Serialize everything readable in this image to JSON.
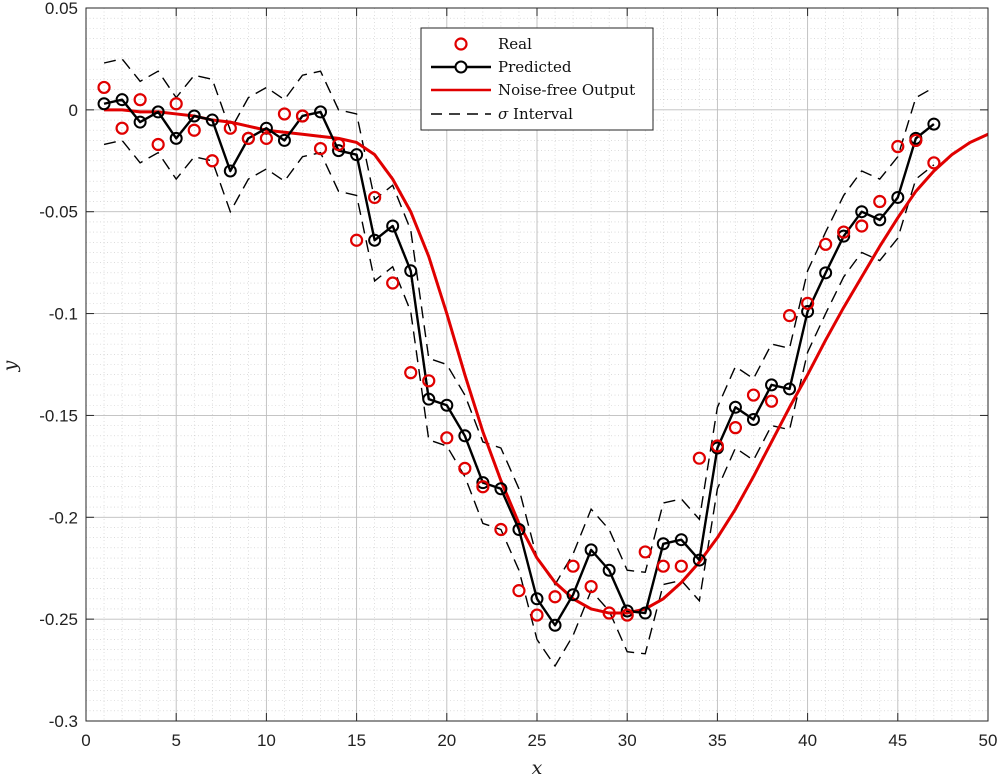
{
  "chart_data": {
    "type": "line",
    "title": "",
    "xlabel": "x",
    "ylabel": "y",
    "xlim": [
      0,
      50
    ],
    "ylim": [
      -0.3,
      0.05
    ],
    "xticks": [
      0,
      5,
      10,
      15,
      20,
      25,
      30,
      35,
      40,
      45,
      50
    ],
    "yticks": [
      0.05,
      0,
      -0.05,
      -0.1,
      -0.15,
      -0.2,
      -0.25,
      -0.3
    ],
    "xtick_labels": [
      "0",
      "5",
      "10",
      "15",
      "20",
      "25",
      "30",
      "35",
      "40",
      "45",
      "50"
    ],
    "ytick_labels": [
      "0.05",
      "0",
      "-0.05",
      "-0.1",
      "-0.15",
      "-0.2",
      "-0.25",
      "-0.3"
    ],
    "grid": true,
    "minor_grid": true,
    "legend_position": "top-center",
    "x": [
      1,
      2,
      3,
      4,
      5,
      6,
      7,
      8,
      9,
      10,
      11,
      12,
      13,
      14,
      15,
      16,
      17,
      18,
      19,
      20,
      21,
      22,
      23,
      24,
      25,
      26,
      27,
      28,
      29,
      30,
      31,
      32,
      33,
      34,
      35,
      36,
      37,
      38,
      39,
      40,
      41,
      42,
      43,
      44,
      45,
      46,
      47
    ],
    "series": [
      {
        "name": "Real",
        "kind": "markers",
        "color": "#e00000",
        "values": [
          0.011,
          -0.009,
          0.005,
          -0.017,
          0.003,
          -0.01,
          -0.025,
          -0.009,
          -0.014,
          -0.014,
          -0.002,
          -0.003,
          -0.019,
          -0.017,
          -0.064,
          -0.043,
          -0.085,
          -0.129,
          -0.133,
          -0.161,
          -0.176,
          -0.185,
          -0.206,
          -0.236,
          -0.248,
          -0.239,
          -0.224,
          -0.234,
          -0.247,
          -0.248,
          -0.217,
          -0.224,
          -0.224,
          -0.171,
          -0.165,
          -0.156,
          -0.14,
          -0.143,
          -0.101,
          -0.095,
          -0.066,
          -0.06,
          -0.057,
          -0.045,
          -0.018,
          -0.015,
          -0.026
        ]
      },
      {
        "name": "Predicted",
        "kind": "line-markers",
        "color": "#000000",
        "values": [
          0.003,
          0.005,
          -0.006,
          -0.001,
          -0.014,
          -0.003,
          -0.005,
          -0.03,
          -0.014,
          -0.009,
          -0.015,
          -0.003,
          -0.001,
          -0.02,
          -0.022,
          -0.064,
          -0.057,
          -0.079,
          -0.142,
          -0.145,
          -0.16,
          -0.183,
          -0.186,
          -0.206,
          -0.24,
          -0.253,
          -0.238,
          -0.216,
          -0.226,
          -0.246,
          -0.247,
          -0.213,
          -0.211,
          -0.221,
          -0.166,
          -0.146,
          -0.152,
          -0.135,
          -0.137,
          -0.099,
          -0.08,
          -0.062,
          -0.05,
          -0.054,
          -0.043,
          -0.014,
          -0.007
        ]
      },
      {
        "name": "Noise-free Output",
        "kind": "line",
        "color": "#e00000",
        "x": [
          1,
          2,
          3,
          4,
          5,
          6,
          7,
          8,
          9,
          10,
          11,
          12,
          13,
          14,
          15,
          16,
          17,
          18,
          19,
          20,
          21,
          22,
          23,
          24,
          25,
          26,
          27,
          28,
          29,
          30,
          31,
          32,
          33,
          34,
          35,
          36,
          37,
          38,
          39,
          40,
          41,
          42,
          43,
          44,
          45,
          46,
          47,
          48,
          49,
          50
        ],
        "values": [
          0,
          0,
          -0.001,
          -0.001,
          -0.002,
          -0.003,
          -0.005,
          -0.006,
          -0.008,
          -0.01,
          -0.011,
          -0.012,
          -0.013,
          -0.014,
          -0.016,
          -0.022,
          -0.034,
          -0.05,
          -0.072,
          -0.1,
          -0.13,
          -0.158,
          -0.182,
          -0.203,
          -0.22,
          -0.232,
          -0.24,
          -0.245,
          -0.247,
          -0.247,
          -0.245,
          -0.24,
          -0.232,
          -0.222,
          -0.21,
          -0.196,
          -0.18,
          -0.163,
          -0.146,
          -0.13,
          -0.113,
          -0.097,
          -0.082,
          -0.067,
          -0.053,
          -0.04,
          -0.03,
          -0.022,
          -0.016,
          -0.012
        ]
      },
      {
        "name": "σ Interval",
        "kind": "dashed-band",
        "color": "#000000",
        "upper": [
          0.023,
          0.025,
          0.014,
          0.019,
          0.006,
          0.017,
          0.015,
          -0.01,
          0.006,
          0.011,
          0.005,
          0.017,
          0.019,
          0.0,
          -0.002,
          -0.044,
          -0.037,
          -0.059,
          -0.122,
          -0.125,
          -0.14,
          -0.163,
          -0.166,
          -0.186,
          -0.22,
          -0.233,
          -0.218,
          -0.196,
          -0.206,
          -0.226,
          -0.227,
          -0.193,
          -0.191,
          -0.201,
          -0.146,
          -0.126,
          -0.132,
          -0.115,
          -0.117,
          -0.079,
          -0.06,
          -0.042,
          -0.03,
          -0.034,
          -0.023,
          0.006,
          0.011
        ],
        "lower": [
          -0.017,
          -0.015,
          -0.026,
          -0.021,
          -0.034,
          -0.023,
          -0.025,
          -0.05,
          -0.034,
          -0.029,
          -0.035,
          -0.023,
          -0.021,
          -0.04,
          -0.042,
          -0.084,
          -0.077,
          -0.099,
          -0.162,
          -0.165,
          -0.18,
          -0.203,
          -0.206,
          -0.226,
          -0.26,
          -0.273,
          -0.258,
          -0.236,
          -0.246,
          -0.266,
          -0.267,
          -0.233,
          -0.231,
          -0.241,
          -0.186,
          -0.166,
          -0.172,
          -0.155,
          -0.157,
          -0.119,
          -0.1,
          -0.082,
          -0.07,
          -0.074,
          -0.063,
          -0.034,
          -0.027
        ]
      }
    ]
  },
  "legend": {
    "items": [
      {
        "label": "Real"
      },
      {
        "label": "Predicted"
      },
      {
        "label": "Noise-free Output"
      },
      {
        "label_symbol": "σ",
        "label": "Interval"
      }
    ]
  }
}
